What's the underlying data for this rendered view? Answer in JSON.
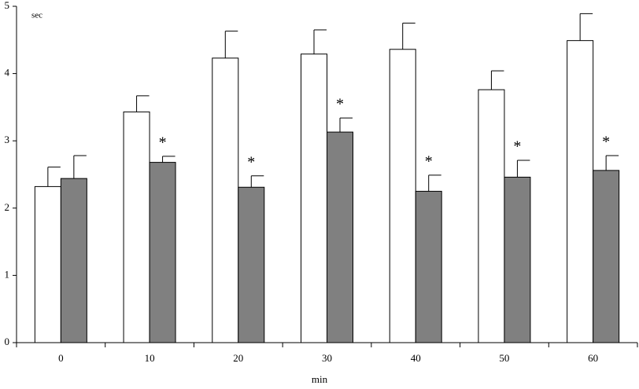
{
  "chart_data": {
    "type": "bar",
    "x_label": "min",
    "y_label": "sec",
    "categories": [
      "0",
      "10",
      "20",
      "30",
      "40",
      "50",
      "60"
    ],
    "series": [
      {
        "color": "#ffffff",
        "values": [
          2.32,
          3.43,
          4.23,
          4.29,
          4.36,
          3.76,
          4.49
        ],
        "errors": [
          0.29,
          0.24,
          0.4,
          0.36,
          0.39,
          0.28,
          0.4
        ]
      },
      {
        "color": "#808080",
        "values": [
          2.44,
          2.68,
          2.31,
          3.13,
          2.25,
          2.46,
          2.56
        ],
        "errors": [
          0.34,
          0.09,
          0.17,
          0.21,
          0.24,
          0.25,
          0.22
        ]
      }
    ],
    "annotations": [
      null,
      "*",
      "*",
      "*",
      "*",
      "*",
      "*"
    ],
    "ylim": [
      0,
      5
    ],
    "yticks": [
      0,
      1,
      2,
      3,
      4,
      5
    ],
    "grid": false
  }
}
